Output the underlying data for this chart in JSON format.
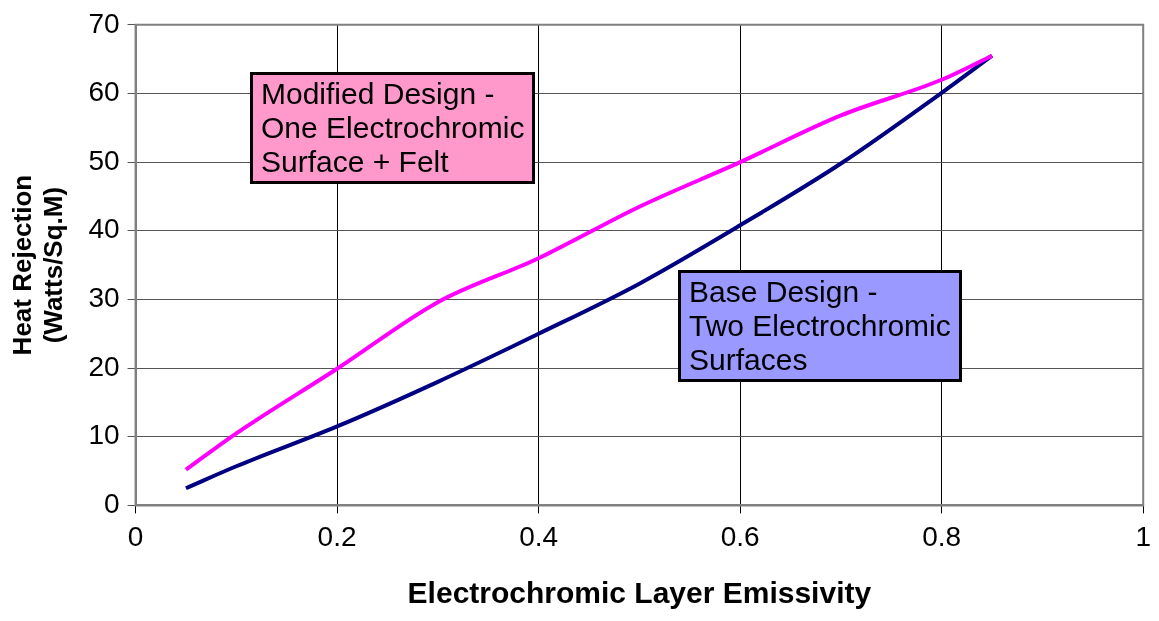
{
  "chart_data": {
    "type": "line",
    "xlabel": "Electrochromic Layer Emissivity",
    "ylabel": "Heat Rejection\n(Watts/Sq.M)",
    "xlim": [
      0,
      1
    ],
    "xticks": [
      0,
      0.2,
      0.4,
      0.6,
      0.8,
      1
    ],
    "ylim": [
      0,
      70
    ],
    "yticks": [
      0,
      10,
      20,
      30,
      40,
      50,
      60,
      70
    ],
    "grid": true,
    "legend": false,
    "marker": "none",
    "line_style": "solid",
    "x": [
      0.05,
      0.1,
      0.2,
      0.3,
      0.4,
      0.5,
      0.6,
      0.7,
      0.8,
      0.85
    ],
    "series": [
      {
        "name": "Modified Design -\nOne Electrochromic\nSurface + Felt",
        "color": "#ff00ff",
        "values": [
          5.2,
          10.5,
          19.9,
          29.6,
          36,
          43.5,
          50,
          56.8,
          62,
          65.5
        ]
      },
      {
        "name": "Base Design -\nTwo Electrochromic\nSurfaces",
        "color": "#000080",
        "values": [
          2.5,
          5.7,
          11.5,
          18,
          25,
          32.3,
          40.8,
          49.8,
          60.1,
          65.5
        ]
      }
    ]
  }
}
